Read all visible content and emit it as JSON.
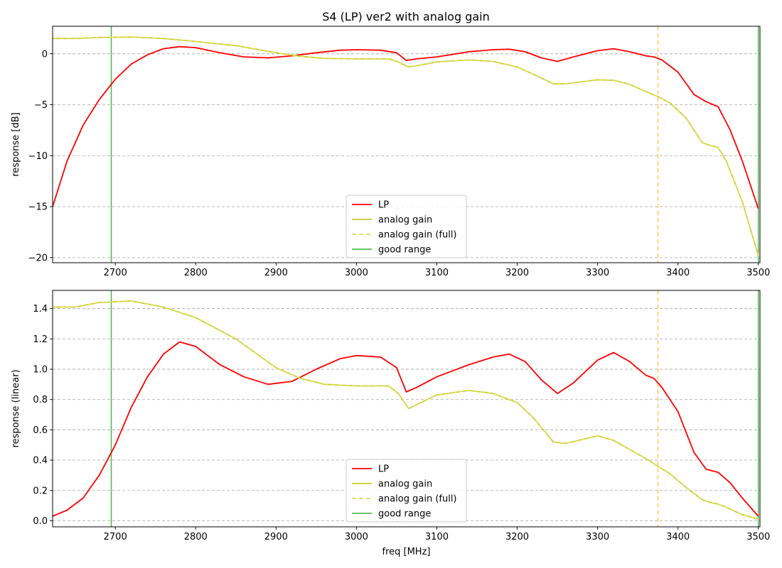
{
  "figure_title": "S4 (LP)   ver2   with analog gain",
  "colors": {
    "lp": "#ff0000",
    "analog_gain": "#cccc33",
    "analog_gain_full": "#dddd55",
    "good_range": "#55bb55",
    "cutoff": "#ffcc66",
    "grid": "#b0b0b0"
  },
  "legend": {
    "placement": "lower center",
    "entries": [
      "LP",
      "analog gain",
      "analog gain (full)",
      "good range"
    ]
  },
  "chart_data": [
    {
      "type": "line",
      "title": "S4 (LP)   ver2   with analog gain",
      "xlabel": "",
      "ylabel": "response [dB]",
      "xlim": [
        2622,
        3502
      ],
      "ylim": [
        -20.5,
        2.7
      ],
      "xticks": [
        "2700",
        "2800",
        "2900",
        "3000",
        "3100",
        "3200",
        "3300",
        "3400",
        "3500"
      ],
      "yticks": [
        "−20",
        "−15",
        "−10",
        "−5",
        "0"
      ],
      "ytick_values": [
        -20,
        -15,
        -10,
        -5,
        0
      ],
      "grid": "horizontal dashed",
      "vlines": [
        {
          "x": 2695,
          "style": "solid",
          "role": "good range"
        },
        {
          "x": 3500,
          "style": "solid",
          "role": "good range"
        },
        {
          "x": 3375,
          "style": "dashed",
          "role": "marker"
        }
      ],
      "series": [
        {
          "name": "LP",
          "x": [
            2622,
            2640,
            2660,
            2680,
            2700,
            2720,
            2740,
            2760,
            2780,
            2800,
            2830,
            2860,
            2890,
            2920,
            2950,
            2980,
            3000,
            3030,
            3050,
            3062,
            3075,
            3100,
            3140,
            3170,
            3190,
            3210,
            3230,
            3250,
            3270,
            3300,
            3320,
            3340,
            3360,
            3370,
            3380,
            3400,
            3420,
            3435,
            3450,
            3465,
            3480,
            3500
          ],
          "y": [
            -15,
            -10.5,
            -7,
            -4.5,
            -2.5,
            -1.0,
            -0.1,
            0.5,
            0.7,
            0.6,
            0.1,
            -0.3,
            -0.4,
            -0.2,
            0.1,
            0.35,
            0.4,
            0.35,
            0.1,
            -0.65,
            -0.5,
            -0.3,
            0.2,
            0.4,
            0.45,
            0.2,
            -0.4,
            -0.75,
            -0.3,
            0.3,
            0.5,
            0.2,
            -0.2,
            -0.3,
            -0.6,
            -1.8,
            -4.0,
            -4.7,
            -5.2,
            -7.5,
            -10.5,
            -15.2
          ]
        },
        {
          "name": "analog gain",
          "x": [
            2622,
            2650,
            2680,
            2720,
            2760,
            2800,
            2850,
            2900,
            2930,
            2960,
            3000,
            3040,
            3052,
            3065,
            3080,
            3100,
            3140,
            3170,
            3200,
            3220,
            3245,
            3260,
            3300,
            3320,
            3340,
            3360,
            3375,
            3390,
            3410,
            3430,
            3440,
            3450,
            3460,
            3480,
            3500
          ],
          "y": [
            1.5,
            1.5,
            1.6,
            1.65,
            1.5,
            1.2,
            0.8,
            0.1,
            -0.25,
            -0.45,
            -0.5,
            -0.5,
            -0.8,
            -1.3,
            -1.1,
            -0.8,
            -0.6,
            -0.75,
            -1.3,
            -2.0,
            -2.95,
            -2.95,
            -2.55,
            -2.6,
            -3.0,
            -3.7,
            -4.2,
            -4.8,
            -6.3,
            -8.7,
            -9.0,
            -9.2,
            -10.5,
            -14.5,
            -19.8
          ]
        },
        {
          "name": "analog gain (full)",
          "x": [
            2622,
            2650,
            2680,
            2720,
            2760,
            2800,
            2850,
            2900,
            2930,
            2960,
            3000,
            3040,
            3052,
            3065,
            3080,
            3100,
            3140,
            3170,
            3200,
            3220,
            3245,
            3260,
            3300,
            3320,
            3340,
            3360,
            3375,
            3390,
            3410,
            3430,
            3440,
            3450,
            3460,
            3480,
            3500
          ],
          "y": [
            1.5,
            1.5,
            1.6,
            1.65,
            1.5,
            1.2,
            0.8,
            0.1,
            -0.25,
            -0.45,
            -0.5,
            -0.5,
            -0.8,
            -1.3,
            -1.1,
            -0.8,
            -0.6,
            -0.75,
            -1.3,
            -2.0,
            -2.95,
            -2.95,
            -2.55,
            -2.6,
            -3.0,
            -3.7,
            -4.2,
            -4.8,
            -6.3,
            -8.7,
            -9.0,
            -9.2,
            -10.5,
            -14.5,
            -19.8
          ]
        }
      ]
    },
    {
      "type": "line",
      "title": "",
      "xlabel": "freq [MHz]",
      "ylabel": "response (linear)",
      "xlim": [
        2622,
        3502
      ],
      "ylim": [
        -0.04,
        1.52
      ],
      "xticks": [
        "2700",
        "2800",
        "2900",
        "3000",
        "3100",
        "3200",
        "3300",
        "3400",
        "3500"
      ],
      "yticks": [
        "0.0",
        "0.2",
        "0.4",
        "0.6",
        "0.8",
        "1.0",
        "1.2",
        "1.4"
      ],
      "ytick_values": [
        0,
        0.2,
        0.4,
        0.6,
        0.8,
        1.0,
        1.2,
        1.4
      ],
      "grid": "horizontal dashed",
      "vlines": [
        {
          "x": 2695,
          "style": "solid",
          "role": "good range"
        },
        {
          "x": 3500,
          "style": "solid",
          "role": "good range"
        },
        {
          "x": 3375,
          "style": "dashed",
          "role": "marker"
        }
      ],
      "series": [
        {
          "name": "LP",
          "x": [
            2622,
            2640,
            2660,
            2680,
            2700,
            2720,
            2740,
            2760,
            2780,
            2800,
            2830,
            2860,
            2890,
            2920,
            2950,
            2980,
            3000,
            3030,
            3050,
            3062,
            3075,
            3100,
            3140,
            3170,
            3190,
            3210,
            3230,
            3250,
            3270,
            3300,
            3320,
            3340,
            3360,
            3370,
            3380,
            3400,
            3420,
            3435,
            3450,
            3465,
            3480,
            3500
          ],
          "y": [
            0.03,
            0.07,
            0.15,
            0.3,
            0.5,
            0.75,
            0.95,
            1.1,
            1.18,
            1.15,
            1.03,
            0.95,
            0.9,
            0.92,
            1.0,
            1.07,
            1.09,
            1.08,
            1.01,
            0.85,
            0.88,
            0.95,
            1.03,
            1.08,
            1.1,
            1.05,
            0.93,
            0.84,
            0.91,
            1.06,
            1.11,
            1.05,
            0.96,
            0.94,
            0.88,
            0.72,
            0.45,
            0.34,
            0.32,
            0.25,
            0.15,
            0.03
          ]
        },
        {
          "name": "analog gain",
          "x": [
            2622,
            2650,
            2680,
            2720,
            2760,
            2800,
            2850,
            2900,
            2930,
            2960,
            3000,
            3040,
            3052,
            3065,
            3080,
            3100,
            3140,
            3170,
            3200,
            3220,
            3245,
            3260,
            3300,
            3320,
            3340,
            3360,
            3375,
            3390,
            3410,
            3430,
            3440,
            3450,
            3460,
            3480,
            3500
          ],
          "y": [
            1.41,
            1.41,
            1.44,
            1.45,
            1.41,
            1.34,
            1.2,
            1.01,
            0.94,
            0.9,
            0.89,
            0.89,
            0.84,
            0.74,
            0.78,
            0.83,
            0.86,
            0.84,
            0.78,
            0.68,
            0.52,
            0.51,
            0.56,
            0.53,
            0.47,
            0.41,
            0.36,
            0.31,
            0.22,
            0.14,
            0.12,
            0.11,
            0.09,
            0.04,
            0.01
          ]
        },
        {
          "name": "analog gain (full)",
          "x": [
            2622,
            2650,
            2680,
            2720,
            2760,
            2800,
            2850,
            2900,
            2930,
            2960,
            3000,
            3040,
            3052,
            3065,
            3080,
            3100,
            3140,
            3170,
            3200,
            3220,
            3245,
            3260,
            3300,
            3320,
            3340,
            3360,
            3375,
            3390,
            3410,
            3430,
            3440,
            3450,
            3460,
            3480,
            3500
          ],
          "y": [
            1.41,
            1.41,
            1.44,
            1.45,
            1.41,
            1.34,
            1.2,
            1.01,
            0.94,
            0.9,
            0.89,
            0.89,
            0.84,
            0.74,
            0.78,
            0.83,
            0.86,
            0.84,
            0.78,
            0.68,
            0.52,
            0.51,
            0.56,
            0.53,
            0.47,
            0.41,
            0.36,
            0.31,
            0.22,
            0.14,
            0.12,
            0.11,
            0.09,
            0.04,
            0.01
          ]
        }
      ]
    }
  ]
}
